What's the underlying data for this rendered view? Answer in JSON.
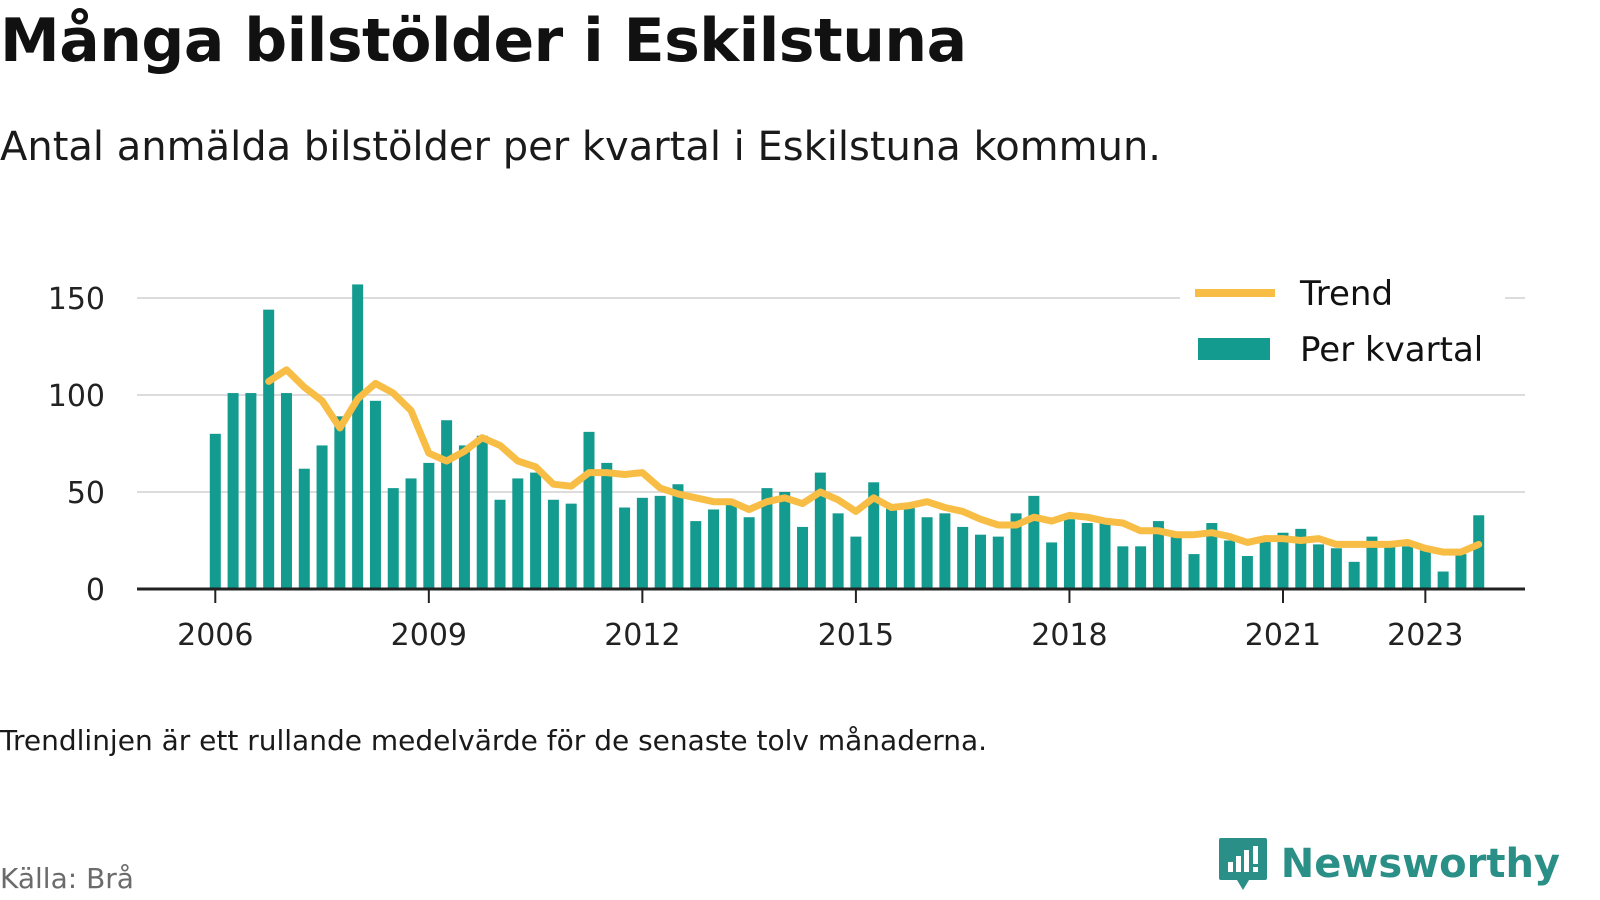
{
  "title": "Många bilstölder i Eskilstuna",
  "subtitle": "Antal anmälda bilstölder per kvartal i Eskilstuna kommun.",
  "note": "Trendlinjen är ett rullande medelvärde för de senaste tolv månaderna.",
  "source": "Källa: Brå",
  "brand": {
    "name": "Newsworthy",
    "icon": "newsworthy-logo-icon"
  },
  "colors": {
    "bars": "#139b8f",
    "trend": "#f7bd45",
    "grid": "#dcdcdc",
    "axis": "#222222",
    "brand": "#2a8f86"
  },
  "chart_data": {
    "type": "bar",
    "title": "Många bilstölder i Eskilstuna",
    "ylim": [
      0,
      150
    ],
    "yticks": [
      0,
      50,
      100,
      150
    ],
    "xticks": [
      {
        "value": 2006.0,
        "label": "2006"
      },
      {
        "value": 2009.0,
        "label": "2009"
      },
      {
        "value": 2012.0,
        "label": "2012"
      },
      {
        "value": 2015.0,
        "label": "2015"
      },
      {
        "value": 2018.0,
        "label": "2018"
      },
      {
        "value": 2021.0,
        "label": "2021"
      },
      {
        "value": 2023.0,
        "label": "2023"
      }
    ],
    "xlim": [
      2004.9,
      2024.4
    ],
    "grid": true,
    "legend_position": "top-right",
    "categories": [
      "2006 Q1",
      "2006 Q2",
      "2006 Q3",
      "2006 Q4",
      "2007 Q1",
      "2007 Q2",
      "2007 Q3",
      "2007 Q4",
      "2008 Q1",
      "2008 Q2",
      "2008 Q3",
      "2008 Q4",
      "2009 Q1",
      "2009 Q2",
      "2009 Q3",
      "2009 Q4",
      "2010 Q1",
      "2010 Q2",
      "2010 Q3",
      "2010 Q4",
      "2011 Q1",
      "2011 Q2",
      "2011 Q3",
      "2011 Q4",
      "2012 Q1",
      "2012 Q2",
      "2012 Q3",
      "2012 Q4",
      "2013 Q1",
      "2013 Q2",
      "2013 Q3",
      "2013 Q4",
      "2014 Q1",
      "2014 Q2",
      "2014 Q3",
      "2014 Q4",
      "2015 Q1",
      "2015 Q2",
      "2015 Q3",
      "2015 Q4",
      "2016 Q1",
      "2016 Q2",
      "2016 Q3",
      "2016 Q4",
      "2017 Q1",
      "2017 Q2",
      "2017 Q3",
      "2017 Q4",
      "2018 Q1",
      "2018 Q2",
      "2018 Q3",
      "2018 Q4",
      "2019 Q1",
      "2019 Q2",
      "2019 Q3",
      "2019 Q4",
      "2020 Q1",
      "2020 Q2",
      "2020 Q3",
      "2020 Q4",
      "2021 Q1",
      "2021 Q2",
      "2021 Q3",
      "2021 Q4",
      "2022 Q1",
      "2022 Q2",
      "2022 Q3",
      "2022 Q4",
      "2023 Q1",
      "2023 Q2",
      "2023 Q3",
      "2023 Q4"
    ],
    "x": [
      2006.0,
      2006.25,
      2006.5,
      2006.75,
      2007.0,
      2007.25,
      2007.5,
      2007.75,
      2008.0,
      2008.25,
      2008.5,
      2008.75,
      2009.0,
      2009.25,
      2009.5,
      2009.75,
      2010.0,
      2010.25,
      2010.5,
      2010.75,
      2011.0,
      2011.25,
      2011.5,
      2011.75,
      2012.0,
      2012.25,
      2012.5,
      2012.75,
      2013.0,
      2013.25,
      2013.5,
      2013.75,
      2014.0,
      2014.25,
      2014.5,
      2014.75,
      2015.0,
      2015.25,
      2015.5,
      2015.75,
      2016.0,
      2016.25,
      2016.5,
      2016.75,
      2017.0,
      2017.25,
      2017.5,
      2017.75,
      2018.0,
      2018.25,
      2018.5,
      2018.75,
      2019.0,
      2019.25,
      2019.5,
      2019.75,
      2020.0,
      2020.25,
      2020.5,
      2020.75,
      2021.0,
      2021.25,
      2021.5,
      2021.75,
      2022.0,
      2022.25,
      2022.5,
      2022.75,
      2023.0,
      2023.25,
      2023.5,
      2023.75
    ],
    "series": [
      {
        "name": "Per kvartal",
        "kind": "bar",
        "values": [
          80,
          101,
          101,
          144,
          101,
          62,
          74,
          89,
          157,
          97,
          52,
          57,
          65,
          87,
          74,
          79,
          46,
          57,
          60,
          46,
          44,
          81,
          65,
          42,
          47,
          48,
          54,
          35,
          41,
          44,
          37,
          52,
          50,
          32,
          60,
          39,
          27,
          55,
          43,
          44,
          37,
          39,
          32,
          28,
          27,
          39,
          48,
          24,
          36,
          34,
          35,
          22,
          22,
          35,
          28,
          18,
          34,
          25,
          17,
          25,
          29,
          31,
          23,
          21,
          14,
          27,
          23,
          22,
          22,
          9,
          18,
          38
        ]
      },
      {
        "name": "Trend",
        "kind": "line",
        "x": [
          2006.75,
          2007.0,
          2007.25,
          2007.5,
          2007.75,
          2008.0,
          2008.25,
          2008.5,
          2008.75,
          2009.0,
          2009.25,
          2009.5,
          2009.75,
          2010.0,
          2010.25,
          2010.5,
          2010.75,
          2011.0,
          2011.25,
          2011.5,
          2011.75,
          2012.0,
          2012.25,
          2012.5,
          2012.75,
          2013.0,
          2013.25,
          2013.5,
          2013.75,
          2014.0,
          2014.25,
          2014.5,
          2014.75,
          2015.0,
          2015.25,
          2015.5,
          2015.75,
          2016.0,
          2016.25,
          2016.5,
          2016.75,
          2017.0,
          2017.25,
          2017.5,
          2017.75,
          2018.0,
          2018.25,
          2018.5,
          2018.75,
          2019.0,
          2019.25,
          2019.5,
          2019.75,
          2020.0,
          2020.25,
          2020.5,
          2020.75,
          2021.0,
          2021.25,
          2021.5,
          2021.75,
          2022.0,
          2022.25,
          2022.5,
          2022.75,
          2023.0,
          2023.25,
          2023.5,
          2023.75
        ],
        "values": [
          107,
          113,
          104,
          97,
          83,
          98,
          106,
          101,
          92,
          70,
          66,
          71,
          78,
          74,
          66,
          63,
          54,
          53,
          60,
          60,
          59,
          60,
          52,
          49,
          47,
          45,
          45,
          41,
          45,
          47,
          44,
          50,
          46,
          40,
          47,
          42,
          43,
          45,
          42,
          40,
          36,
          33,
          33,
          37,
          35,
          38,
          37,
          35,
          34,
          30,
          30,
          28,
          28,
          29,
          27,
          24,
          26,
          26,
          25,
          26,
          23,
          23,
          23,
          23,
          24,
          21,
          19,
          19,
          23
        ]
      }
    ]
  }
}
